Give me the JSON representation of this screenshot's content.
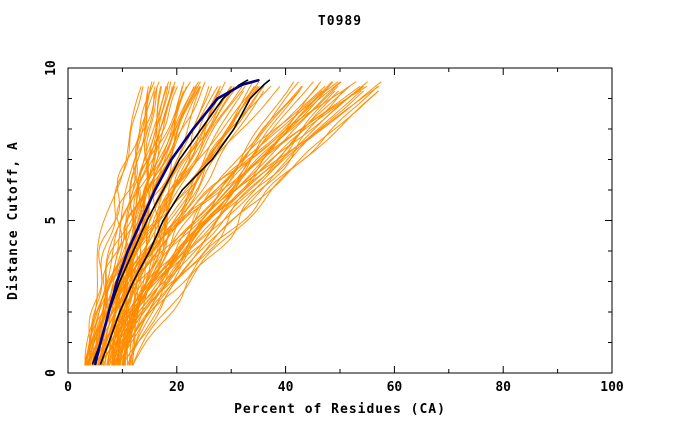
{
  "chart_data": {
    "type": "line",
    "title": "T0989",
    "xlabel": "Percent of Residues (CA)",
    "ylabel": "Distance Cutoff, A",
    "xlim": [
      0,
      100
    ],
    "ylim": [
      0,
      10
    ],
    "x_major_ticks": [
      0,
      20,
      40,
      60,
      80,
      100
    ],
    "x_minor_step": 10,
    "y_major_ticks": [
      0,
      5,
      10
    ],
    "y_minor_step": 1,
    "grid": false,
    "legend": "none",
    "colors": {
      "ensemble": "#ff8c00",
      "highlight_blue": "#00008b",
      "highlight_black": "#000000",
      "axis": "#000000",
      "background": "#ffffff"
    },
    "ensemble": {
      "name": "prediction-models-orange",
      "count": 95,
      "seed": 123457,
      "start_x_range": [
        3,
        12
      ],
      "end_x_range": [
        13,
        58
      ],
      "y_start": 0.25,
      "y_top_range": [
        9.35,
        9.6
      ],
      "stroke_width": 1
    },
    "highlight_series": [
      {
        "name": "model-black-1",
        "color": "#000000",
        "width": 1.6,
        "points": [
          [
            6,
            0.3
          ],
          [
            7.5,
            1
          ],
          [
            9.5,
            2
          ],
          [
            12,
            3
          ],
          [
            15,
            4
          ],
          [
            17.5,
            5
          ],
          [
            21,
            6
          ],
          [
            26.5,
            7
          ],
          [
            30.5,
            8
          ],
          [
            33.5,
            9
          ],
          [
            36,
            9.45
          ],
          [
            37,
            9.6
          ]
        ]
      },
      {
        "name": "model-black-2",
        "color": "#000000",
        "width": 1.6,
        "points": [
          [
            4.5,
            0.3
          ],
          [
            6,
            1
          ],
          [
            7.5,
            2
          ],
          [
            9.5,
            3
          ],
          [
            12,
            4
          ],
          [
            14.5,
            5
          ],
          [
            17.5,
            6
          ],
          [
            20.5,
            7
          ],
          [
            24.5,
            8
          ],
          [
            28.5,
            9
          ],
          [
            31.5,
            9.45
          ],
          [
            33,
            9.6
          ]
        ]
      },
      {
        "name": "model-blue",
        "color": "#00008b",
        "width": 2.6,
        "points": [
          [
            5,
            0.3
          ],
          [
            6,
            1
          ],
          [
            7.5,
            2
          ],
          [
            9,
            3
          ],
          [
            11,
            4
          ],
          [
            13.5,
            5
          ],
          [
            16,
            6
          ],
          [
            19,
            7
          ],
          [
            23,
            8
          ],
          [
            27.5,
            9
          ],
          [
            32,
            9.45
          ],
          [
            35,
            9.6
          ]
        ]
      }
    ]
  }
}
